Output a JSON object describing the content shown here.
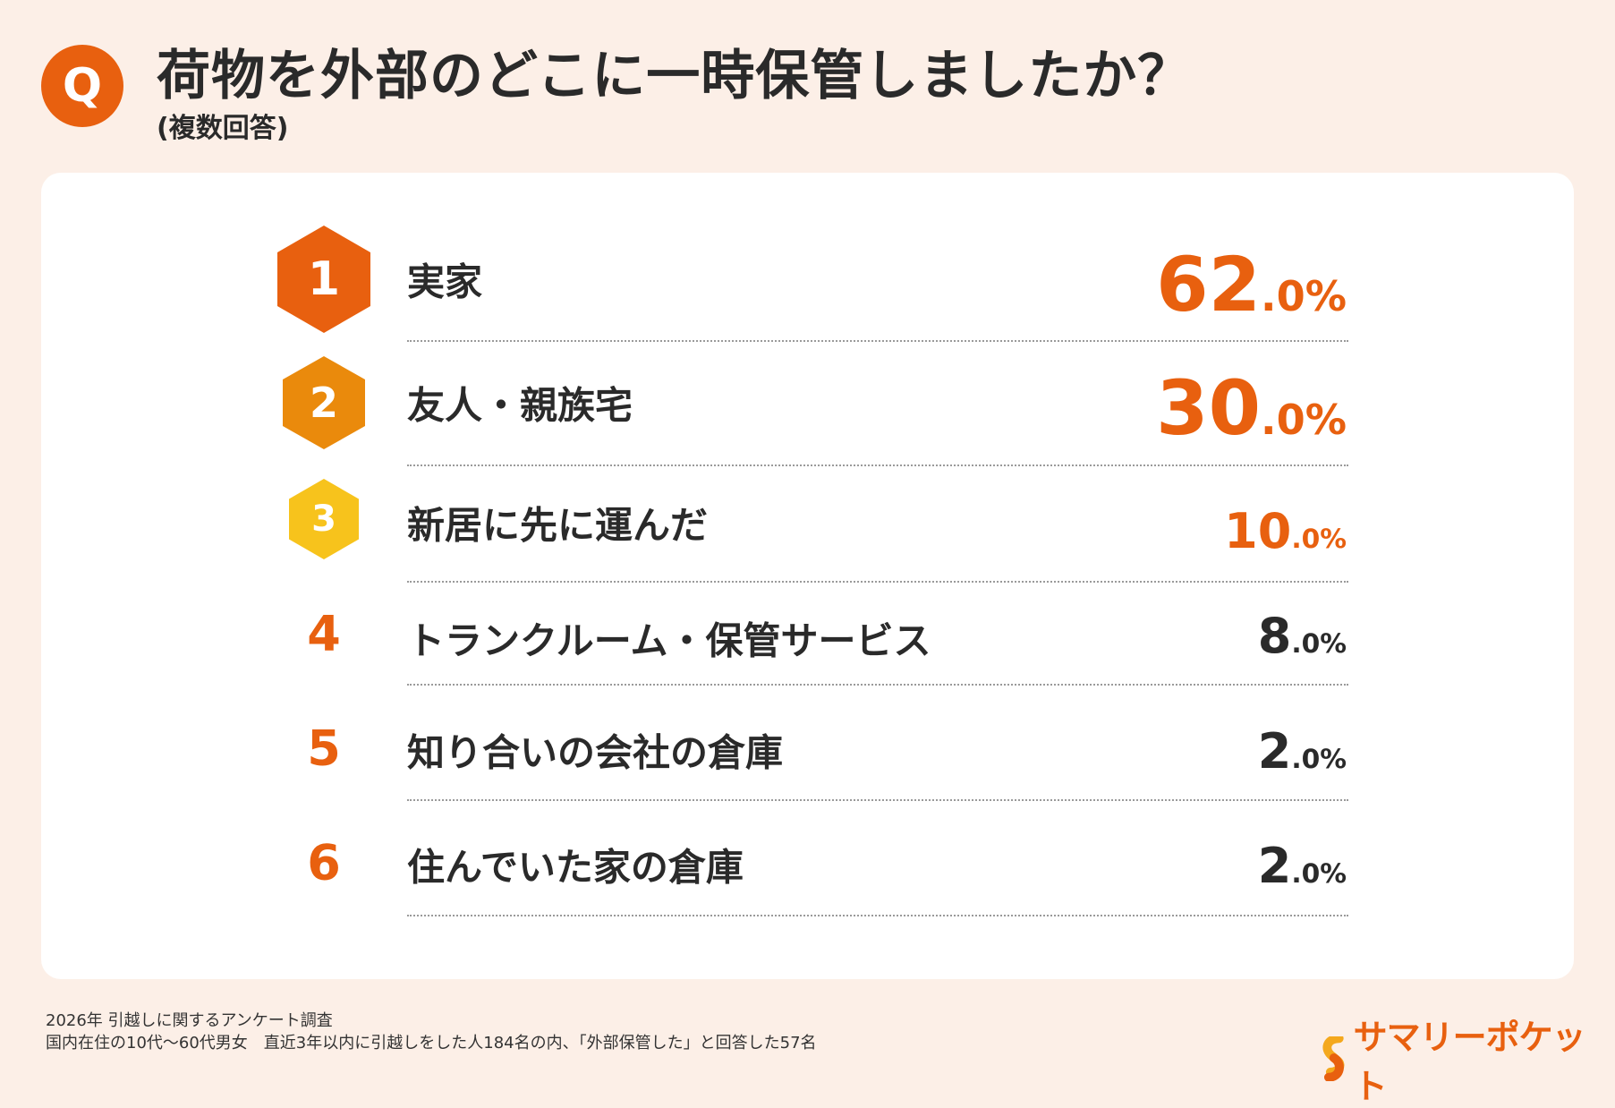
{
  "header": {
    "q_badge": "Q",
    "title": "荷物を外部のどこに一時保管しましたか？",
    "subtitle": "(複数回答)"
  },
  "colors": {
    "background": "#fcefe7",
    "accent": "#e8600f",
    "rank2": "#ea8a0c",
    "rank3": "#f7c31c",
    "text": "#2a2a2a"
  },
  "ranking": [
    {
      "rank": "1",
      "label": "実家",
      "value_int": "62",
      "value_dec": ".0%"
    },
    {
      "rank": "2",
      "label": "友人・親族宅",
      "value_int": "30",
      "value_dec": ".0%"
    },
    {
      "rank": "3",
      "label": "新居に先に運んだ",
      "value_int": "10",
      "value_dec": ".0%"
    },
    {
      "rank": "4",
      "label": "トランクルーム・保管サービス",
      "value_int": "8",
      "value_dec": ".0%"
    },
    {
      "rank": "5",
      "label": "知り合いの会社の倉庫",
      "value_int": "2",
      "value_dec": ".0%"
    },
    {
      "rank": "6",
      "label": "住んでいた家の倉庫",
      "value_int": "2",
      "value_dec": ".0%"
    }
  ],
  "footer": {
    "line1": "2026年  引越しに関するアンケート調査",
    "line2": "国内在住の10代～60代男女　直近3年以内に引越しをした人184名の内、「外部保管した」と回答した57名"
  },
  "logo": {
    "text": "サマリーポケット"
  }
}
